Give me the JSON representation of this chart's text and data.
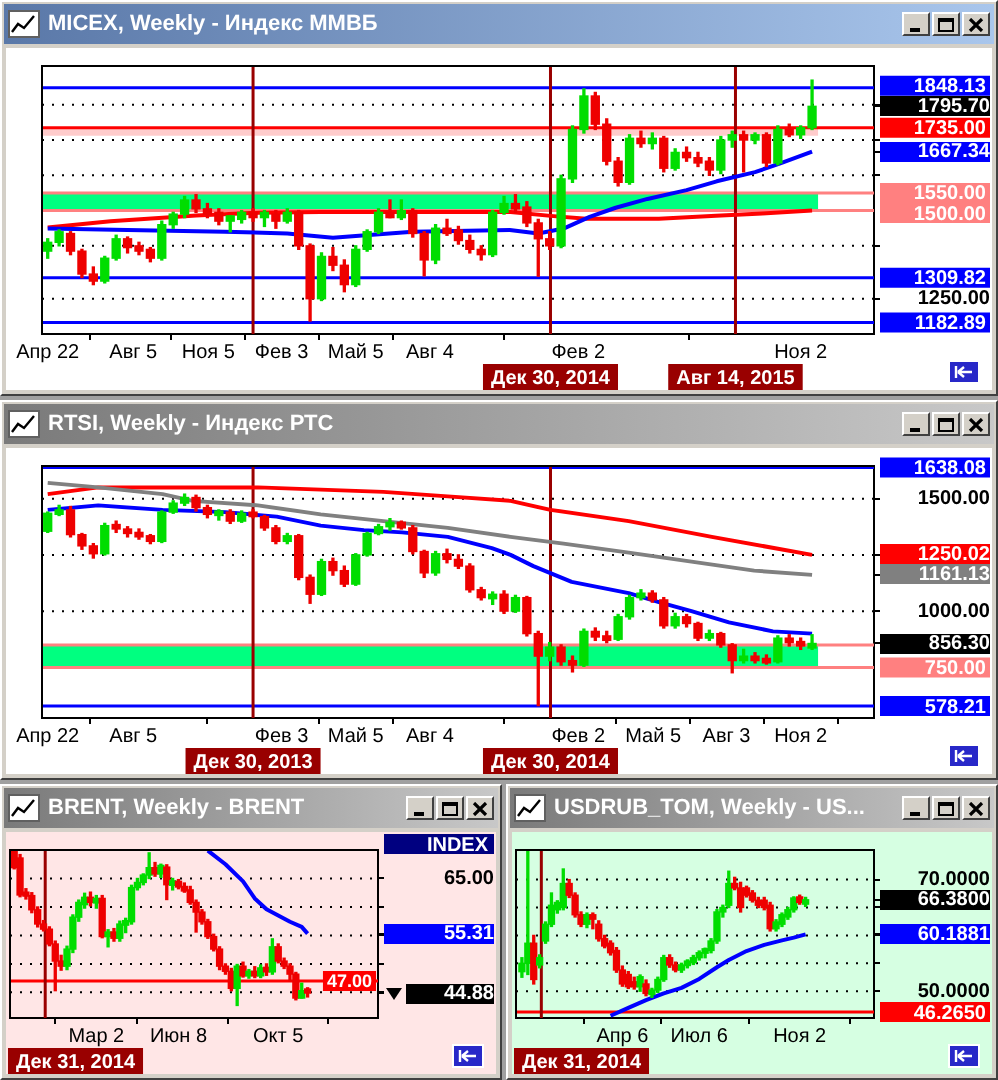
{
  "chart_data": [
    {
      "type": "candlestick",
      "title": "MICEX, Weekly - Индекс ММВБ",
      "x": [
        "2013-04-22",
        "2013-05-06",
        "2013-05-20",
        "2013-06-03",
        "2013-06-17",
        "2013-07-01",
        "2013-07-15",
        "2013-07-29",
        "2013-08-12",
        "2013-08-26",
        "2013-09-09",
        "2013-09-23",
        "2013-10-07",
        "2013-10-21",
        "2013-11-04",
        "2013-11-18",
        "2013-12-02",
        "2013-12-16",
        "2013-12-30",
        "2014-01-13",
        "2014-01-27",
        "2014-02-10",
        "2014-02-24",
        "2014-03-10",
        "2014-03-24",
        "2014-04-07",
        "2014-04-21",
        "2014-05-05",
        "2014-05-19",
        "2014-06-02",
        "2014-06-16",
        "2014-06-30",
        "2014-07-14",
        "2014-07-28",
        "2014-08-11",
        "2014-08-25",
        "2014-09-08",
        "2014-09-22",
        "2014-10-06",
        "2014-10-20",
        "2014-11-03",
        "2014-11-17",
        "2014-12-01",
        "2014-12-15",
        "2014-12-29",
        "2015-01-12",
        "2015-01-26",
        "2015-02-09",
        "2015-02-23",
        "2015-03-09",
        "2015-03-23",
        "2015-04-06",
        "2015-04-20",
        "2015-05-04",
        "2015-05-18",
        "2015-06-01",
        "2015-06-15",
        "2015-06-29",
        "2015-07-13",
        "2015-07-27",
        "2015-08-10",
        "2015-08-24",
        "2015-09-07",
        "2015-09-21",
        "2015-10-05",
        "2015-10-19",
        "2015-11-02",
        "2015-11-16"
      ],
      "ohlc": [
        [
          1385,
          1420,
          1365,
          1410
        ],
        [
          1410,
          1445,
          1400,
          1440
        ],
        [
          1435,
          1440,
          1375,
          1385
        ],
        [
          1385,
          1390,
          1310,
          1320
        ],
        [
          1320,
          1340,
          1290,
          1300
        ],
        [
          1300,
          1370,
          1295,
          1365
        ],
        [
          1365,
          1430,
          1360,
          1420
        ],
        [
          1420,
          1425,
          1380,
          1395
        ],
        [
          1400,
          1410,
          1375,
          1385
        ],
        [
          1390,
          1395,
          1355,
          1365
        ],
        [
          1365,
          1470,
          1360,
          1460
        ],
        [
          1460,
          1495,
          1450,
          1490
        ],
        [
          1490,
          1540,
          1480,
          1530
        ],
        [
          1530,
          1545,
          1495,
          1505
        ],
        [
          1505,
          1520,
          1480,
          1490
        ],
        [
          1495,
          1505,
          1460,
          1470
        ],
        [
          1470,
          1485,
          1440,
          1485
        ],
        [
          1475,
          1500,
          1465,
          1495
        ],
        [
          1495,
          1505,
          1470,
          1480
        ],
        [
          1480,
          1500,
          1455,
          1495
        ],
        [
          1490,
          1500,
          1450,
          1470
        ],
        [
          1470,
          1505,
          1465,
          1495
        ],
        [
          1495,
          1500,
          1390,
          1400
        ],
        [
          1400,
          1405,
          1187,
          1250
        ],
        [
          1250,
          1380,
          1245,
          1370
        ],
        [
          1370,
          1395,
          1330,
          1345
        ],
        [
          1345,
          1360,
          1270,
          1290
        ],
        [
          1290,
          1400,
          1285,
          1390
        ],
        [
          1390,
          1445,
          1385,
          1440
        ],
        [
          1440,
          1505,
          1435,
          1495
        ],
        [
          1495,
          1530,
          1480,
          1480
        ],
        [
          1480,
          1530,
          1475,
          1500
        ],
        [
          1500,
          1505,
          1425,
          1435
        ],
        [
          1435,
          1440,
          1315,
          1360
        ],
        [
          1360,
          1460,
          1350,
          1450
        ],
        [
          1450,
          1475,
          1430,
          1435
        ],
        [
          1445,
          1455,
          1405,
          1415
        ],
        [
          1415,
          1430,
          1380,
          1390
        ],
        [
          1390,
          1400,
          1360,
          1375
        ],
        [
          1375,
          1500,
          1370,
          1495
        ],
        [
          1495,
          1540,
          1490,
          1520
        ],
        [
          1520,
          1545,
          1495,
          1505
        ],
        [
          1510,
          1525,
          1455,
          1465
        ],
        [
          1465,
          1475,
          1314,
          1420
        ],
        [
          1420,
          1440,
          1390,
          1400
        ],
        [
          1400,
          1600,
          1395,
          1590
        ],
        [
          1590,
          1740,
          1580,
          1730
        ],
        [
          1730,
          1845,
          1720,
          1825
        ],
        [
          1825,
          1835,
          1730,
          1745
        ],
        [
          1745,
          1760,
          1630,
          1640
        ],
        [
          1640,
          1650,
          1570,
          1580
        ],
        [
          1580,
          1715,
          1575,
          1705
        ],
        [
          1705,
          1725,
          1680,
          1690
        ],
        [
          1690,
          1720,
          1675,
          1705
        ],
        [
          1705,
          1710,
          1610,
          1620
        ],
        [
          1620,
          1675,
          1615,
          1665
        ],
        [
          1665,
          1680,
          1640,
          1650
        ],
        [
          1650,
          1665,
          1625,
          1635
        ],
        [
          1640,
          1650,
          1600,
          1615
        ],
        [
          1615,
          1710,
          1605,
          1700
        ],
        [
          1700,
          1725,
          1680,
          1715
        ],
        [
          1715,
          1725,
          1610,
          1700
        ],
        [
          1700,
          1720,
          1690,
          1715
        ],
        [
          1715,
          1720,
          1625,
          1635
        ],
        [
          1635,
          1740,
          1630,
          1730
        ],
        [
          1730,
          1745,
          1710,
          1715
        ],
        [
          1715,
          1740,
          1705,
          1735
        ],
        [
          1735,
          1870,
          1730,
          1795.7
        ]
      ],
      "series": [
        {
          "type": "line",
          "color": "#0000ff",
          "x": [
            "2013-04-22",
            "2013-07-29",
            "2013-11-25",
            "2014-02-10",
            "2014-04-07",
            "2014-05-05",
            "2014-07-14",
            "2014-11-10",
            "2014-12-15",
            "2015-01-15",
            "2015-02-16",
            "2015-03-20",
            "2015-04-28",
            "2015-06-15",
            "2015-07-22",
            "2015-09-07",
            "2015-10-08",
            "2015-11-16"
          ],
          "values": [
            1449,
            1445,
            1440,
            1435,
            1423,
            1428,
            1440,
            1445,
            1435,
            1449,
            1482,
            1508,
            1533,
            1558,
            1583,
            1609,
            1634,
            1667.34
          ]
        },
        {
          "type": "line",
          "color": "#ff0000",
          "x": [
            "2013-04-22",
            "2013-07-08",
            "2013-10-21",
            "2014-01-06",
            "2014-03-23",
            "2014-07-17",
            "2014-11-11",
            "2014-12-30",
            "2015-02-12",
            "2015-05-12",
            "2015-07-21",
            "2015-09-16",
            "2015-11-16"
          ],
          "values": [
            1452,
            1470,
            1486,
            1494,
            1496,
            1496,
            1496,
            1485,
            1477,
            1477,
            1485,
            1492,
            1500
          ]
        }
      ],
      "xlim": [
        "2013-04-15",
        "2016-01-31"
      ],
      "xticks": [
        {
          "value": "2013-04-22",
          "label": "Апр 22"
        },
        {
          "value": "2013-08-05",
          "label": "Авг 5"
        },
        {
          "value": "2013-11-05",
          "label": "Ноя 5"
        },
        {
          "value": "2014-02-03",
          "label": "Фев 3"
        },
        {
          "value": "2014-05-05",
          "label": "Май 5"
        },
        {
          "value": "2014-08-04",
          "label": "Авг 4"
        },
        {
          "value": "2015-02-02",
          "label": "Фев 2"
        },
        {
          "value": "2015-11-02",
          "label": "Ноя 2"
        }
      ],
      "ylim": [
        1150,
        1910
      ],
      "yticks": [
        {
          "value": 1800,
          "label": null
        },
        {
          "value": 1795.7,
          "label": "1795.70"
        },
        {
          "value": 1700,
          "label": null
        },
        {
          "value": 1667.34,
          "label": "1667.34"
        },
        {
          "value": 1600,
          "label": null
        },
        {
          "value": 1400,
          "label": null
        },
        {
          "value": 1250,
          "label": "1250.00"
        }
      ],
      "grid": "y",
      "bands": [
        {
          "axis": "y",
          "from": 1500,
          "to": 1550,
          "color": "#00ff80"
        },
        {
          "axis": "y",
          "from": 1712,
          "to": 1735,
          "color": "#ffcccc"
        }
      ],
      "ref_lines": [
        {
          "axis": "y",
          "value": 1848.13,
          "label": "1848.13",
          "color": "#0000ff"
        },
        {
          "axis": "y",
          "value": 1735,
          "label": "1735.00",
          "color": "#ff0000"
        },
        {
          "axis": "y",
          "value": 1550,
          "label": "1550.00",
          "color": "#ff8080"
        },
        {
          "axis": "y",
          "value": 1500,
          "label": "1500.00",
          "color": "#ff8080"
        },
        {
          "axis": "y",
          "value": 1309.82,
          "label": "1309.82",
          "color": "#0000ff"
        },
        {
          "axis": "y",
          "value": 1182.89,
          "label": "1182.89",
          "color": "#0000ff"
        },
        {
          "axis": "x",
          "value": "2013-12-30",
          "color": "#990000"
        },
        {
          "axis": "x",
          "value": "2014-12-30",
          "label": "Дек 30, 2014",
          "color": "#990000"
        },
        {
          "axis": "x",
          "value": "2015-08-14",
          "label": "Авг 14, 2015",
          "color": "#990000"
        }
      ]
    },
    {
      "type": "candlestick",
      "title": "RTSI, Weekly - Индекс РТС",
      "x": [
        "2013-04-22",
        "2013-05-06",
        "2013-05-20",
        "2013-06-03",
        "2013-06-17",
        "2013-07-01",
        "2013-07-15",
        "2013-07-29",
        "2013-08-12",
        "2013-08-26",
        "2013-09-09",
        "2013-09-23",
        "2013-10-07",
        "2013-10-21",
        "2013-11-04",
        "2013-11-18",
        "2013-12-02",
        "2013-12-16",
        "2013-12-30",
        "2014-01-13",
        "2014-01-27",
        "2014-02-10",
        "2014-02-24",
        "2014-03-10",
        "2014-03-24",
        "2014-04-07",
        "2014-04-21",
        "2014-05-05",
        "2014-05-19",
        "2014-06-02",
        "2014-06-16",
        "2014-06-30",
        "2014-07-14",
        "2014-07-28",
        "2014-08-11",
        "2014-08-25",
        "2014-09-08",
        "2014-09-22",
        "2014-10-06",
        "2014-10-20",
        "2014-11-03",
        "2014-11-17",
        "2014-12-01",
        "2014-12-15",
        "2014-12-29",
        "2015-01-12",
        "2015-01-26",
        "2015-02-09",
        "2015-02-23",
        "2015-03-09",
        "2015-03-23",
        "2015-04-06",
        "2015-04-20",
        "2015-05-04",
        "2015-05-18",
        "2015-06-01",
        "2015-06-15",
        "2015-06-29",
        "2015-07-13",
        "2015-07-27",
        "2015-08-10",
        "2015-08-24",
        "2015-09-07",
        "2015-09-21",
        "2015-10-05",
        "2015-10-19",
        "2015-11-02",
        "2015-11-16"
      ],
      "ohlc": [
        [
          1355,
          1440,
          1350,
          1435
        ],
        [
          1430,
          1470,
          1425,
          1450
        ],
        [
          1450,
          1465,
          1330,
          1340
        ],
        [
          1340,
          1345,
          1275,
          1290
        ],
        [
          1290,
          1300,
          1236,
          1255
        ],
        [
          1255,
          1390,
          1250,
          1380
        ],
        [
          1385,
          1400,
          1350,
          1365
        ],
        [
          1365,
          1375,
          1330,
          1345
        ],
        [
          1350,
          1365,
          1320,
          1330
        ],
        [
          1335,
          1340,
          1300,
          1310
        ],
        [
          1310,
          1445,
          1305,
          1440
        ],
        [
          1440,
          1490,
          1435,
          1480
        ],
        [
          1480,
          1520,
          1470,
          1505
        ],
        [
          1505,
          1515,
          1445,
          1460
        ],
        [
          1460,
          1470,
          1415,
          1430
        ],
        [
          1425,
          1450,
          1405,
          1445
        ],
        [
          1440,
          1450,
          1390,
          1400
        ],
        [
          1400,
          1445,
          1395,
          1435
        ],
        [
          1440,
          1450,
          1415,
          1420
        ],
        [
          1420,
          1425,
          1360,
          1370
        ],
        [
          1370,
          1380,
          1300,
          1310
        ],
        [
          1310,
          1345,
          1300,
          1335
        ],
        [
          1335,
          1340,
          1140,
          1150
        ],
        [
          1150,
          1160,
          1035,
          1075
        ],
        [
          1075,
          1230,
          1070,
          1220
        ],
        [
          1220,
          1235,
          1160,
          1180
        ],
        [
          1180,
          1200,
          1110,
          1120
        ],
        [
          1120,
          1255,
          1115,
          1250
        ],
        [
          1250,
          1350,
          1245,
          1345
        ],
        [
          1345,
          1385,
          1340,
          1375
        ],
        [
          1375,
          1411,
          1360,
          1395
        ],
        [
          1395,
          1400,
          1365,
          1370
        ],
        [
          1370,
          1380,
          1255,
          1265
        ],
        [
          1265,
          1270,
          1150,
          1170
        ],
        [
          1170,
          1265,
          1160,
          1255
        ],
        [
          1255,
          1275,
          1215,
          1230
        ],
        [
          1230,
          1250,
          1190,
          1200
        ],
        [
          1200,
          1210,
          1085,
          1095
        ],
        [
          1095,
          1105,
          1050,
          1060
        ],
        [
          1055,
          1085,
          1030,
          1075
        ],
        [
          1075,
          1090,
          990,
          1000
        ],
        [
          1000,
          1070,
          995,
          1060
        ],
        [
          1060,
          1065,
          890,
          900
        ],
        [
          900,
          910,
          580,
          800
        ],
        [
          800,
          860,
          780,
          840
        ],
        [
          840,
          850,
          760,
          775
        ],
        [
          780,
          800,
          730,
          760
        ],
        [
          760,
          920,
          755,
          910
        ],
        [
          910,
          925,
          870,
          885
        ],
        [
          890,
          910,
          860,
          870
        ],
        [
          875,
          985,
          870,
          975
        ],
        [
          975,
          1070,
          965,
          1060
        ],
        [
          1060,
          1095,
          1050,
          1080
        ],
        [
          1080,
          1090,
          1040,
          1050
        ],
        [
          1050,
          1060,
          925,
          935
        ],
        [
          935,
          990,
          925,
          975
        ],
        [
          975,
          985,
          930,
          945
        ],
        [
          945,
          950,
          870,
          880
        ],
        [
          880,
          915,
          870,
          900
        ],
        [
          900,
          905,
          840,
          850
        ],
        [
          850,
          855,
          726,
          780
        ],
        [
          780,
          830,
          770,
          800
        ],
        [
          800,
          815,
          770,
          780
        ],
        [
          790,
          805,
          765,
          770
        ],
        [
          775,
          890,
          770,
          880
        ],
        [
          880,
          895,
          845,
          860
        ],
        [
          865,
          880,
          830,
          845
        ],
        [
          836,
          895,
          830,
          856.3
        ]
      ],
      "series": [
        {
          "type": "line",
          "color": "#0000ff",
          "x": [
            "2013-04-22",
            "2013-06-23",
            "2013-09-10",
            "2013-11-26",
            "2014-01-28",
            "2014-03-23",
            "2014-05-15",
            "2014-07-01",
            "2014-08-26",
            "2014-10-19",
            "2014-11-11",
            "2014-12-09",
            "2015-01-25",
            "2015-04-05",
            "2015-05-12",
            "2015-06-21",
            "2015-08-06",
            "2015-09-29",
            "2015-11-16"
          ],
          "values": [
            1450,
            1470,
            1450,
            1440,
            1420,
            1380,
            1360,
            1350,
            1330,
            1280,
            1250,
            1200,
            1130,
            1080,
            1040,
            1000,
            950,
            910,
            900
          ]
        },
        {
          "type": "line",
          "color": "#808080",
          "x": [
            "2013-04-22",
            "2013-06-23",
            "2013-09-10",
            "2013-10-17",
            "2014-01-05",
            "2014-03-23",
            "2014-06-08",
            "2014-08-26",
            "2014-11-11",
            "2015-01-15",
            "2015-04-05",
            "2015-06-21",
            "2015-09-06",
            "2015-11-16"
          ],
          "values": [
            1570,
            1550,
            1520,
            1490,
            1470,
            1430,
            1400,
            1370,
            1330,
            1300,
            1260,
            1220,
            1180,
            1161.13
          ]
        },
        {
          "type": "line",
          "color": "#ff0000",
          "x": [
            "2013-04-22",
            "2013-06-23",
            "2013-09-10",
            "2014-01-05",
            "2014-06-08",
            "2014-08-26",
            "2014-11-11",
            "2014-12-30",
            "2015-04-05",
            "2015-07-16",
            "2015-11-16"
          ],
          "values": [
            1520,
            1550,
            1550,
            1550,
            1530,
            1510,
            1490,
            1450,
            1400,
            1330,
            1250.02
          ]
        }
      ],
      "xlim": [
        "2013-04-15",
        "2016-01-31"
      ],
      "xticks": [
        {
          "value": "2013-04-22",
          "label": "Апр 22"
        },
        {
          "value": "2013-08-05",
          "label": "Авг 5"
        },
        {
          "value": "2014-02-03",
          "label": "Фев 3"
        },
        {
          "value": "2014-05-05",
          "label": "Май 5"
        },
        {
          "value": "2014-08-04",
          "label": "Авг 4"
        },
        {
          "value": "2015-02-02",
          "label": "Фев 2"
        },
        {
          "value": "2015-05-05",
          "label": "Май 5"
        },
        {
          "value": "2015-08-03",
          "label": "Авг 3"
        },
        {
          "value": "2015-11-02",
          "label": "Ноя 2"
        }
      ],
      "ylim": [
        525,
        1645
      ],
      "yticks": [
        {
          "value": 1500,
          "label": "1500.00"
        },
        {
          "value": 1250.02,
          "label": "1250.02"
        },
        {
          "value": 1250,
          "label": null
        },
        {
          "value": 1161.13,
          "label": "1161.13"
        },
        {
          "value": 1000,
          "label": "1000.00"
        },
        {
          "value": 856.3,
          "label": "856.30"
        }
      ],
      "grid": "y",
      "bands": [
        {
          "axis": "y",
          "from": 750,
          "to": 850,
          "color": "#00ff80"
        }
      ],
      "ref_lines": [
        {
          "axis": "y",
          "value": 1638.08,
          "label": "1638.08",
          "color": "#0000ff"
        },
        {
          "axis": "y",
          "value": 850,
          "color": "#ff8080"
        },
        {
          "axis": "y",
          "value": 750,
          "label": "750.00",
          "color": "#ff8080"
        },
        {
          "axis": "y",
          "value": 578.21,
          "label": "578.21",
          "color": "#0000ff"
        },
        {
          "axis": "x",
          "value": "2013-12-30",
          "label": "Дек 30, 2013",
          "color": "#990000"
        },
        {
          "axis": "x",
          "value": "2014-12-30",
          "label": "Дек 30, 2014",
          "color": "#990000"
        }
      ]
    },
    {
      "type": "candlestick",
      "title": "BRENT, Weekly - BRENT",
      "ylabel": "INDEX",
      "x": [
        "2014-11-24",
        "2014-12-01",
        "2014-12-08",
        "2014-12-15",
        "2014-12-22",
        "2014-12-29",
        "2015-01-05",
        "2015-01-12",
        "2015-01-19",
        "2015-01-26",
        "2015-02-02",
        "2015-02-09",
        "2015-02-16",
        "2015-02-23",
        "2015-03-02",
        "2015-03-09",
        "2015-03-16",
        "2015-03-23",
        "2015-03-30",
        "2015-04-06",
        "2015-04-13",
        "2015-04-20",
        "2015-04-27",
        "2015-05-04",
        "2015-05-11",
        "2015-05-18",
        "2015-05-25",
        "2015-06-01",
        "2015-06-08",
        "2015-06-15",
        "2015-06-22",
        "2015-06-29",
        "2015-07-06",
        "2015-07-13",
        "2015-07-20",
        "2015-07-27",
        "2015-08-03",
        "2015-08-10",
        "2015-08-17",
        "2015-08-24",
        "2015-08-31",
        "2015-09-07",
        "2015-09-14",
        "2015-09-21",
        "2015-09-28",
        "2015-10-05",
        "2015-10-12",
        "2015-10-19",
        "2015-10-26",
        "2015-11-02",
        "2015-11-09"
      ],
      "ohlc": [
        [
          69.9,
          69.9,
          66.7,
          66.9
        ],
        [
          68.6,
          69.2,
          61.8,
          62.1
        ],
        [
          62.6,
          63.2,
          61.4,
          61.9
        ],
        [
          62.0,
          62.5,
          59.0,
          59.5
        ],
        [
          59.5,
          60.0,
          56.5,
          57.0
        ],
        [
          57.0,
          57.6,
          55.8,
          56.1
        ],
        [
          56.1,
          56.5,
          53.2,
          53.5
        ],
        [
          53.5,
          54.0,
          45.3,
          50.5
        ],
        [
          50.5,
          51.5,
          48.9,
          49.6
        ],
        [
          49.6,
          53.1,
          49.0,
          52.6
        ],
        [
          52.6,
          58.6,
          52.0,
          58.2
        ],
        [
          58.2,
          61.2,
          57.5,
          60.8
        ],
        [
          60.4,
          62.4,
          59.8,
          61.7
        ],
        [
          61.7,
          62.6,
          60.2,
          60.8
        ],
        [
          60.7,
          62.0,
          59.8,
          61.5
        ],
        [
          61.5,
          62.0,
          54.6,
          54.8
        ],
        [
          54.8,
          56.0,
          53.0,
          55.6
        ],
        [
          55.6,
          56.2,
          54.0,
          54.5
        ],
        [
          54.5,
          57.5,
          54.0,
          57.0
        ],
        [
          56.8,
          58.0,
          55.5,
          57.6
        ],
        [
          57.4,
          63.8,
          57.0,
          63.4
        ],
        [
          63.4,
          65.0,
          63.0,
          64.3
        ],
        [
          64.3,
          65.8,
          63.9,
          65.6
        ],
        [
          65.6,
          69.5,
          65.0,
          66.9
        ],
        [
          66.9,
          67.8,
          65.4,
          65.8
        ],
        [
          65.8,
          67.5,
          65.2,
          67.3
        ],
        [
          67.0,
          67.4,
          61.3,
          63.9
        ],
        [
          63.8,
          65.0,
          63.0,
          64.6
        ],
        [
          64.5,
          64.8,
          63.2,
          63.5
        ],
        [
          63.6,
          64.2,
          62.6,
          62.8
        ],
        [
          63.0,
          63.6,
          60.5,
          60.8
        ],
        [
          60.8,
          61.2,
          55.6,
          59.1
        ],
        [
          59.1,
          59.5,
          57.0,
          57.4
        ],
        [
          57.4,
          57.8,
          54.5,
          54.8
        ],
        [
          54.8,
          55.2,
          52.3,
          52.6
        ],
        [
          52.6,
          53.0,
          49.0,
          49.6
        ],
        [
          49.6,
          50.0,
          48.2,
          48.7
        ],
        [
          48.7,
          49.2,
          45.3,
          45.7
        ],
        [
          45.7,
          49.9,
          42.7,
          49.6
        ],
        [
          49.6,
          50.3,
          47.7,
          47.9
        ],
        [
          47.9,
          49.0,
          47.5,
          48.7
        ],
        [
          48.7,
          49.5,
          47.6,
          47.9
        ],
        [
          47.9,
          49.8,
          47.6,
          49.3
        ],
        [
          49.4,
          50.0,
          48.0,
          48.6
        ],
        [
          48.6,
          54.4,
          48.2,
          53.0
        ],
        [
          53.0,
          53.5,
          50.2,
          50.5
        ],
        [
          50.5,
          51.0,
          49.2,
          49.6
        ],
        [
          49.6,
          50.0,
          47.0,
          48.2
        ],
        [
          48.2,
          48.5,
          43.7,
          44.0
        ],
        [
          44.0,
          46.6,
          44.0,
          45.3
        ],
        [
          45.6,
          45.8,
          44.2,
          44.88
        ]
      ],
      "series": [
        {
          "type": "line",
          "color": "#0000ff",
          "x": [
            "2015-07-13",
            "2015-08-03",
            "2015-08-24",
            "2015-09-07",
            "2015-09-21",
            "2015-10-05",
            "2015-10-19",
            "2015-11-02",
            "2015-11-09"
          ],
          "values": [
            69.9,
            67.5,
            64.5,
            61.5,
            59.6,
            58.5,
            57.4,
            56.5,
            55.31
          ]
        }
      ],
      "xlim": [
        "2014-11-19",
        "2016-02-01"
      ],
      "xticks": [
        {
          "value": "2015-03-02",
          "label": "Мар 2"
        },
        {
          "value": "2015-06-08",
          "label": "Июн 8"
        },
        {
          "value": "2015-10-05",
          "label": "Окт 5"
        }
      ],
      "ylim": [
        40.5,
        70
      ],
      "yticks": [
        {
          "value": 65,
          "label": "65.00"
        },
        {
          "value": 60,
          "label": null
        },
        {
          "value": 55.31,
          "label": "55.31"
        },
        {
          "value": 55,
          "label": null
        },
        {
          "value": 50,
          "label": null
        },
        {
          "value": 45,
          "label": null
        },
        {
          "value": 44.88,
          "label": "44.88"
        }
      ],
      "grid": "y",
      "ref_lines": [
        {
          "axis": "y",
          "value": 47,
          "label": "47.00",
          "color": "#ff0000"
        },
        {
          "axis": "x",
          "value": "2014-12-31",
          "label": "Дек 31, 2014",
          "color": "#990000"
        }
      ]
    },
    {
      "type": "candlestick",
      "title": "USDRUB_TOM, Weekly - US...",
      "x": [
        "2014-12-08",
        "2014-12-15",
        "2014-12-22",
        "2014-12-29",
        "2015-01-05",
        "2015-01-12",
        "2015-01-19",
        "2015-01-26",
        "2015-02-02",
        "2015-02-09",
        "2015-02-16",
        "2015-02-23",
        "2015-03-02",
        "2015-03-09",
        "2015-03-16",
        "2015-03-23",
        "2015-03-30",
        "2015-04-06",
        "2015-04-13",
        "2015-04-20",
        "2015-04-27",
        "2015-05-04",
        "2015-05-11",
        "2015-05-18",
        "2015-05-25",
        "2015-06-01",
        "2015-06-08",
        "2015-06-15",
        "2015-06-22",
        "2015-06-29",
        "2015-07-06",
        "2015-07-13",
        "2015-07-20",
        "2015-07-27",
        "2015-08-03",
        "2015-08-10",
        "2015-08-17",
        "2015-08-24",
        "2015-08-31",
        "2015-09-07",
        "2015-09-14",
        "2015-09-21",
        "2015-09-28",
        "2015-10-05",
        "2015-10-12",
        "2015-10-19",
        "2015-10-26",
        "2015-11-02",
        "2015-11-09"
      ],
      "ohlc": [
        [
          53.5,
          56.0,
          52.5,
          55.0
        ],
        [
          55.0,
          75.3,
          53.0,
          58.6
        ],
        [
          58.6,
          60.0,
          51.3,
          52.1
        ],
        [
          54.7,
          56.5,
          54.2,
          56.0
        ],
        [
          59.0,
          62.4,
          58.6,
          62.0
        ],
        [
          62.0,
          67.6,
          61.6,
          65.4
        ],
        [
          64.6,
          66.2,
          64.0,
          65.9
        ],
        [
          65.0,
          71.9,
          64.6,
          69.3
        ],
        [
          69.3,
          70.0,
          66.8,
          67.2
        ],
        [
          67.2,
          67.6,
          63.3,
          63.7
        ],
        [
          63.7,
          64.2,
          61.6,
          62.0
        ],
        [
          62.0,
          64.0,
          61.4,
          63.7
        ],
        [
          63.7,
          64.0,
          61.2,
          62.9
        ],
        [
          62.0,
          62.6,
          59.0,
          59.4
        ],
        [
          59.4,
          60.0,
          57.8,
          58.1
        ],
        [
          58.6,
          59.0,
          56.5,
          56.9
        ],
        [
          57.3,
          57.8,
          53.4,
          53.8
        ],
        [
          53.8,
          54.5,
          50.9,
          51.3
        ],
        [
          53.0,
          53.5,
          50.5,
          50.8
        ],
        [
          51.7,
          52.5,
          50.4,
          50.8
        ],
        [
          50.8,
          52.9,
          50.0,
          52.6
        ],
        [
          51.3,
          52.0,
          49.2,
          49.6
        ],
        [
          49.4,
          50.5,
          48.9,
          50.2
        ],
        [
          50.2,
          52.5,
          49.8,
          52.1
        ],
        [
          52.1,
          56.4,
          51.8,
          56.0
        ],
        [
          56.0,
          56.5,
          54.3,
          54.7
        ],
        [
          54.7,
          55.2,
          53.5,
          53.8
        ],
        [
          53.8,
          55.0,
          53.4,
          54.7
        ],
        [
          54.6,
          55.6,
          54.2,
          55.4
        ],
        [
          55.1,
          56.4,
          54.8,
          56.0
        ],
        [
          56.0,
          57.2,
          55.6,
          56.9
        ],
        [
          56.8,
          57.7,
          56.0,
          57.6
        ],
        [
          57.3,
          59.4,
          56.9,
          59.0
        ],
        [
          59.0,
          64.6,
          58.6,
          64.2
        ],
        [
          64.2,
          65.4,
          63.3,
          65.0
        ],
        [
          65.4,
          71.5,
          65.0,
          69.3
        ],
        [
          69.3,
          70.4,
          68.2,
          68.5
        ],
        [
          68.5,
          69.5,
          64.2,
          65.0
        ],
        [
          68.5,
          68.8,
          66.9,
          67.2
        ],
        [
          67.6,
          68.0,
          66.0,
          66.3
        ],
        [
          66.3,
          66.8,
          65.0,
          65.4
        ],
        [
          66.3,
          66.8,
          64.6,
          65.0
        ],
        [
          65.4,
          65.9,
          60.8,
          61.2
        ],
        [
          61.2,
          62.8,
          60.8,
          62.4
        ],
        [
          62.0,
          64.0,
          61.6,
          63.7
        ],
        [
          63.3,
          65.0,
          62.9,
          64.6
        ],
        [
          64.6,
          66.9,
          64.2,
          66.7
        ],
        [
          66.9,
          67.2,
          65.6,
          65.9
        ],
        [
          65.6,
          66.8,
          65.2,
          66.38
        ]
      ],
      "series": [
        {
          "type": "line",
          "color": "#0000ff",
          "x": [
            "2015-03-23",
            "2015-04-13",
            "2015-05-04",
            "2015-05-25",
            "2015-06-15",
            "2015-07-06",
            "2015-07-27",
            "2015-08-10",
            "2015-08-31",
            "2015-09-21",
            "2015-10-12",
            "2015-10-26",
            "2015-11-09"
          ],
          "values": [
            45.6,
            47.0,
            48.4,
            49.6,
            50.6,
            52.2,
            54.3,
            55.6,
            57.2,
            58.3,
            59.1,
            59.6,
            60.1881
          ]
        }
      ],
      "xlim": [
        "2014-12-01",
        "2016-01-29"
      ],
      "xticks": [
        {
          "value": "2015-04-06",
          "label": "Апр 6"
        },
        {
          "value": "2015-07-06",
          "label": "Июл 6"
        },
        {
          "value": "2015-11-02",
          "label": "Ноя 2"
        }
      ],
      "ylim": [
        45.2,
        75.3
      ],
      "yticks": [
        {
          "value": 70,
          "label": "70.0000"
        },
        {
          "value": 66.38,
          "label": "66.3800"
        },
        {
          "value": 65,
          "label": null
        },
        {
          "value": 60.1881,
          "label": "60.1881"
        },
        {
          "value": 60,
          "label": null
        },
        {
          "value": 55,
          "label": null
        },
        {
          "value": 50,
          "label": "50.0000"
        }
      ],
      "grid": "y",
      "ref_lines": [
        {
          "axis": "y",
          "value": 46.265,
          "label": "46.2650",
          "color": "#ff0000"
        },
        {
          "axis": "x",
          "value": "2014-12-31",
          "label": "Дек 31, 2014",
          "color": "#990000"
        }
      ]
    }
  ]
}
